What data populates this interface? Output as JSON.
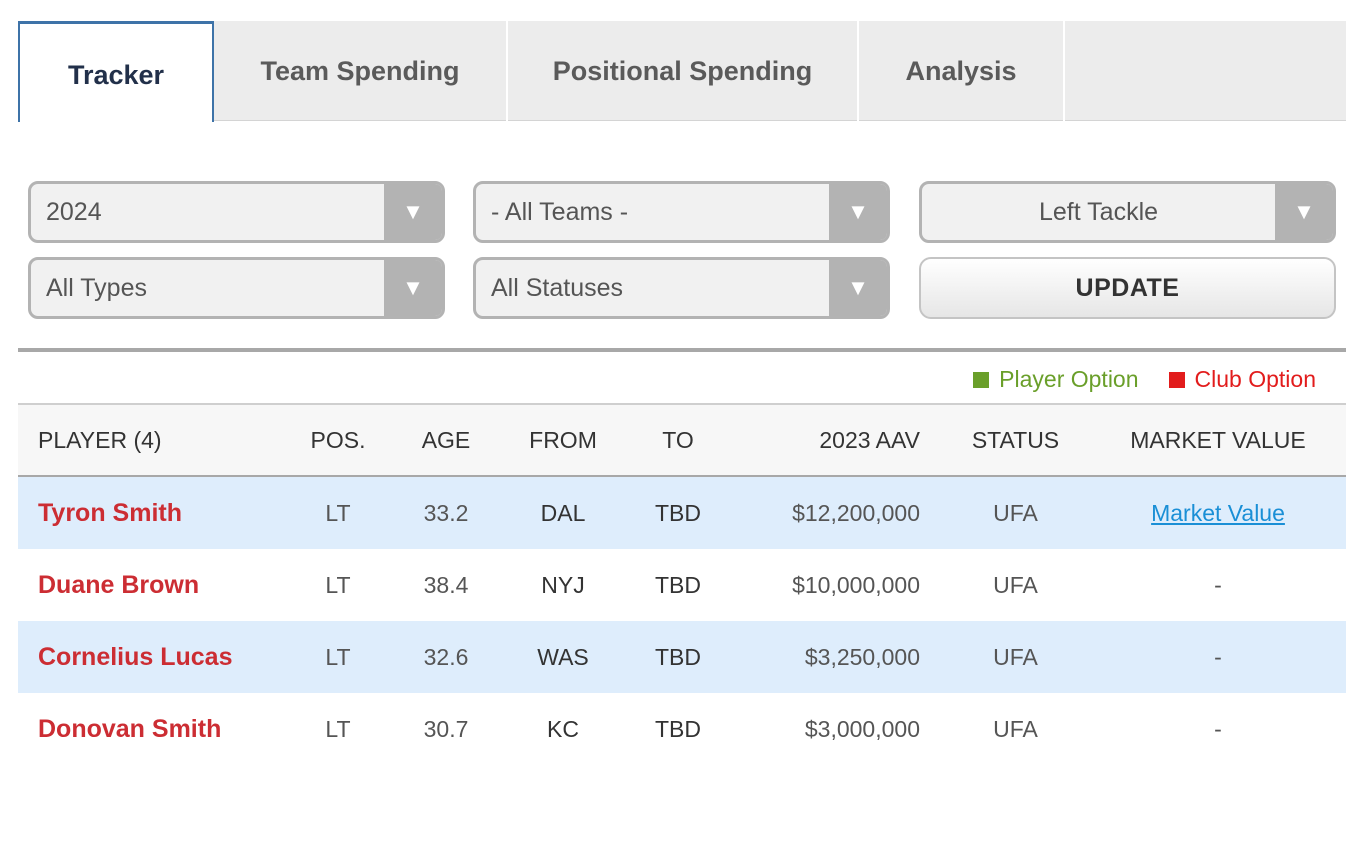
{
  "tabs": [
    {
      "label": "Tracker",
      "active": true
    },
    {
      "label": "Team Spending",
      "active": false
    },
    {
      "label": "Positional Spending",
      "active": false
    },
    {
      "label": "Analysis",
      "active": false
    }
  ],
  "filters": {
    "year": "2024",
    "team": "- All Teams -",
    "position": "Left Tackle",
    "type": "All Types",
    "status": "All Statuses",
    "update_label": "UPDATE",
    "arrow_icon": "▼"
  },
  "legend": {
    "player_option": {
      "label": "Player Option",
      "color": "#6a9f2a"
    },
    "club_option": {
      "label": "Club Option",
      "color": "#e21c1c"
    }
  },
  "table": {
    "headers": {
      "player": "PLAYER (4)",
      "pos": "POS.",
      "age": "AGE",
      "from": "FROM",
      "to": "TO",
      "aav": "2023 AAV",
      "status": "STATUS",
      "market_value": "MARKET VALUE"
    },
    "rows": [
      {
        "name": "Tyron Smith",
        "pos": "LT",
        "age": "33.2",
        "from": "DAL",
        "to": "TBD",
        "aav": "$12,200,000",
        "status": "UFA",
        "market_value": "Market Value"
      },
      {
        "name": "Duane Brown",
        "pos": "LT",
        "age": "38.4",
        "from": "NYJ",
        "to": "TBD",
        "aav": "$10,000,000",
        "status": "UFA",
        "market_value": "-"
      },
      {
        "name": "Cornelius Lucas",
        "pos": "LT",
        "age": "32.6",
        "from": "WAS",
        "to": "TBD",
        "aav": "$3,250,000",
        "status": "UFA",
        "market_value": "-"
      },
      {
        "name": "Donovan Smith",
        "pos": "LT",
        "age": "30.7",
        "from": "KC",
        "to": "TBD",
        "aav": "$3,000,000",
        "status": "UFA",
        "market_value": "-"
      }
    ]
  }
}
